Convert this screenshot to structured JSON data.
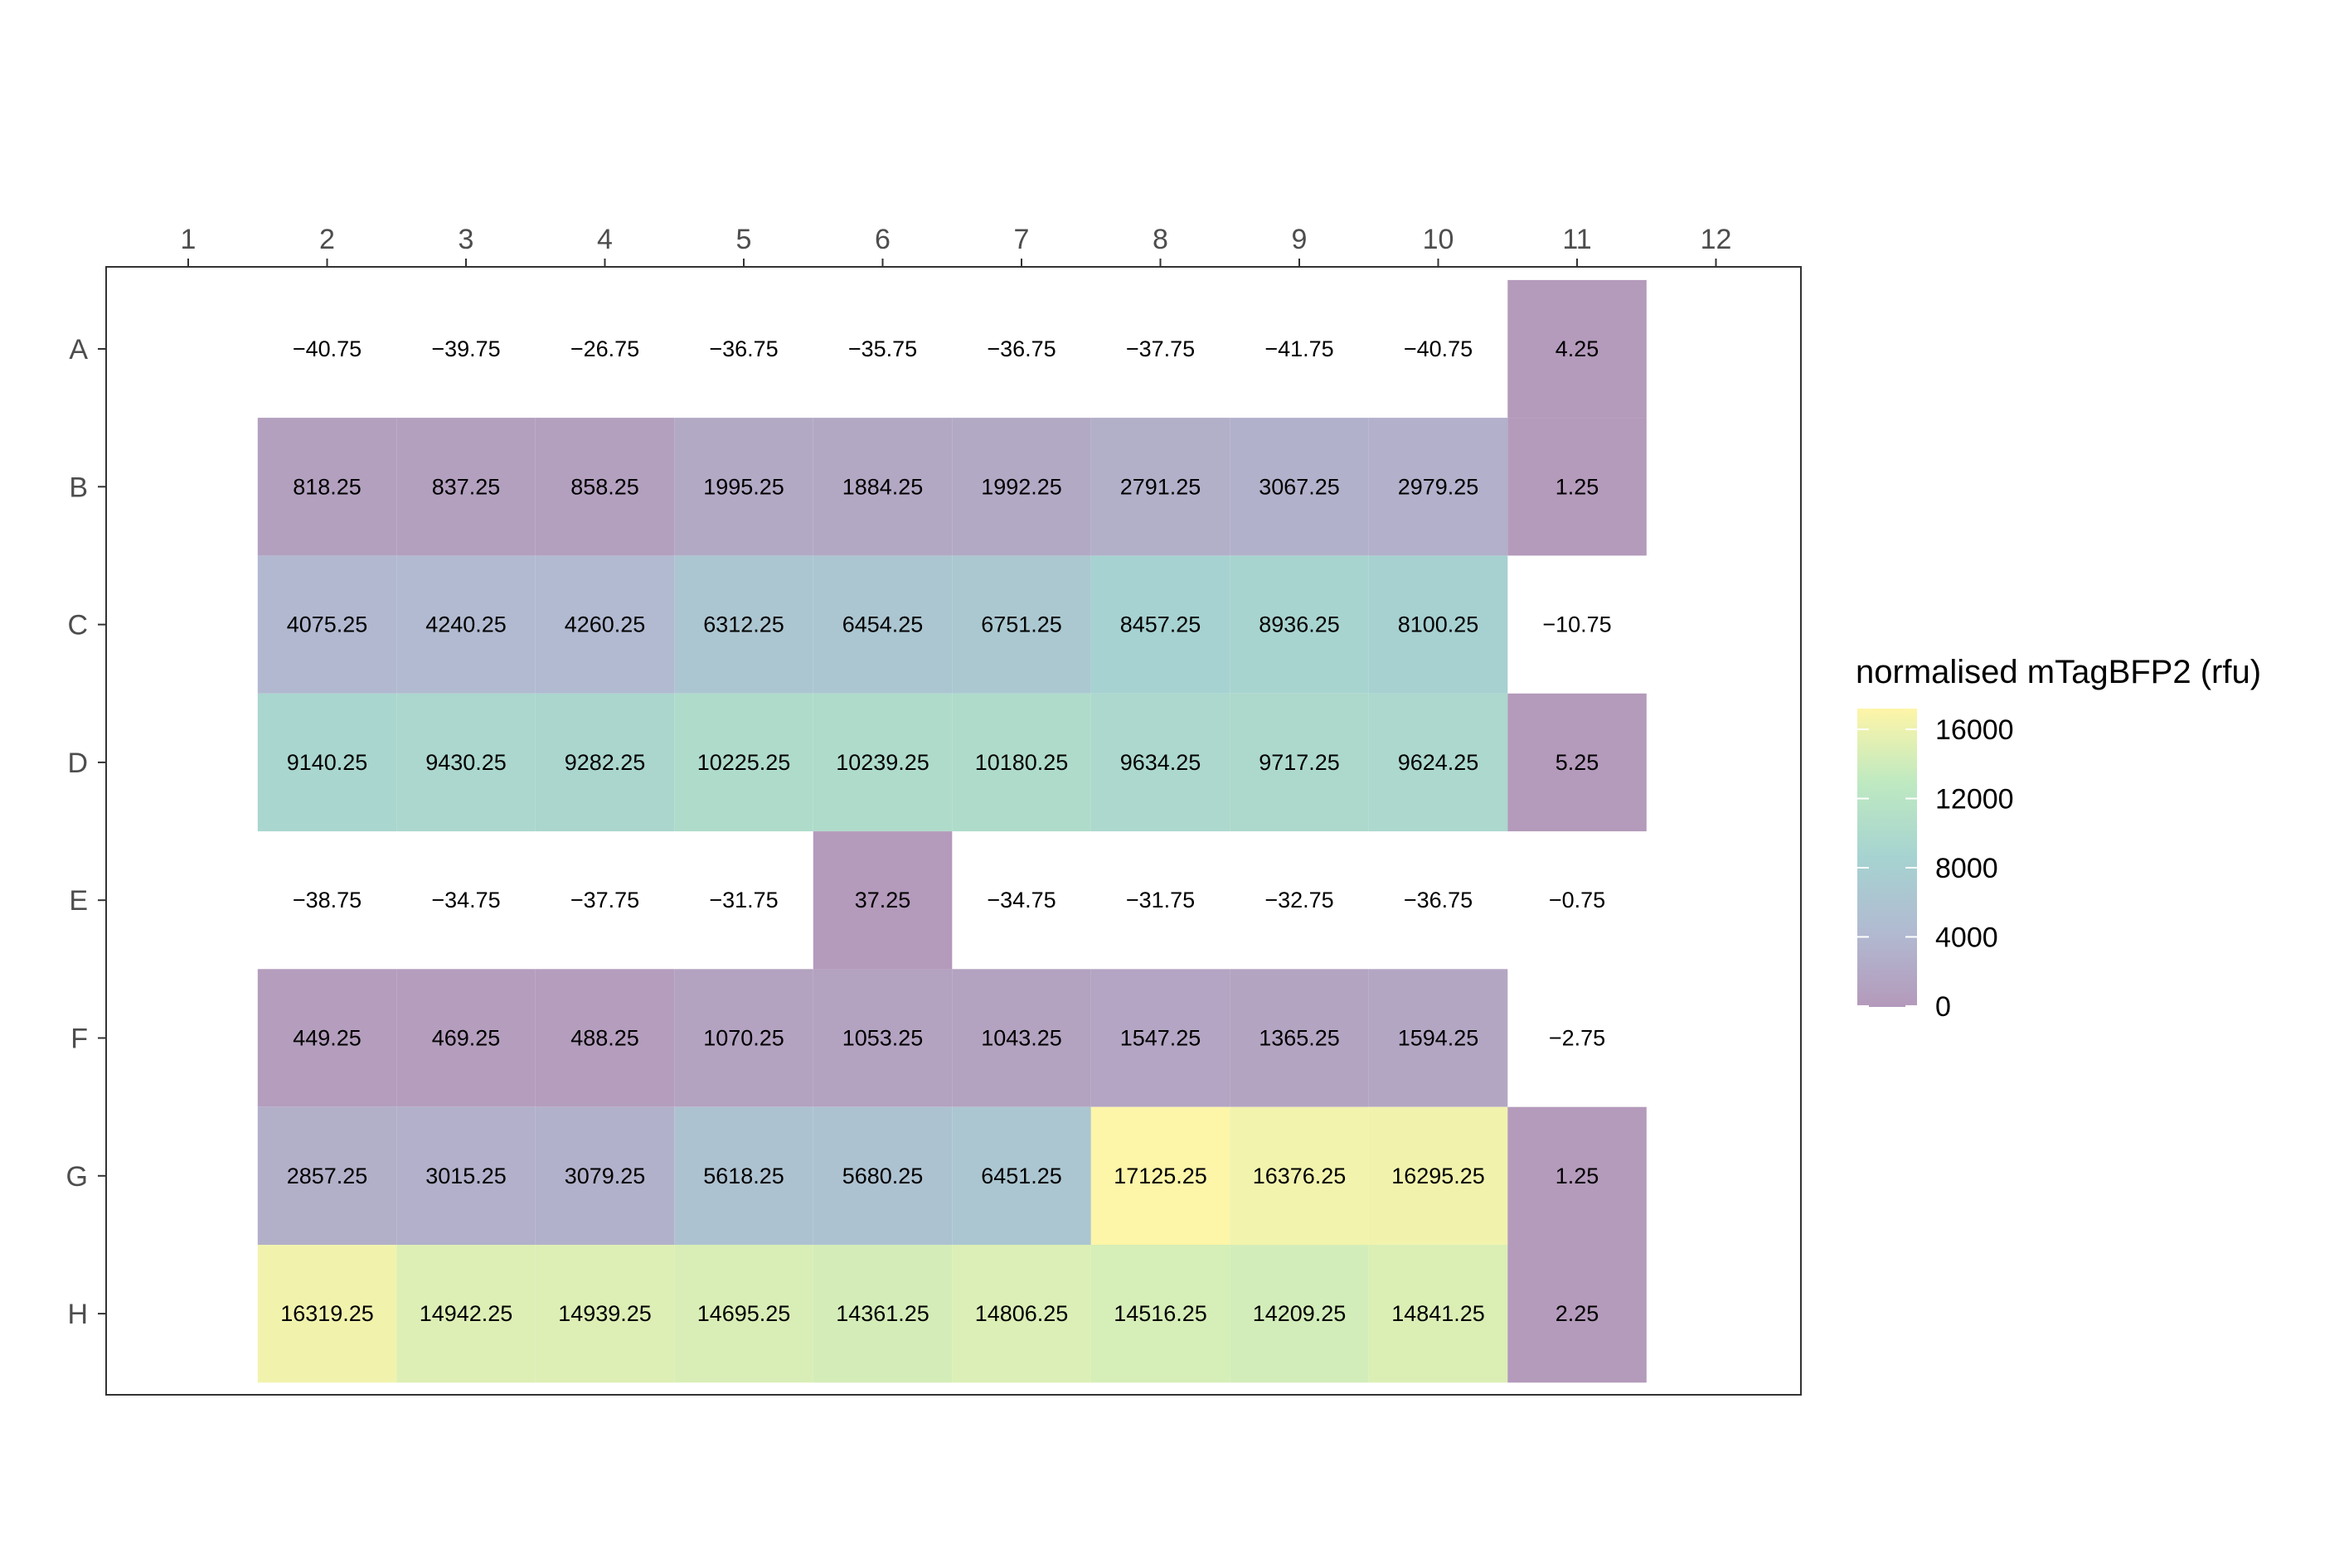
{
  "chart_data": {
    "type": "heatmap",
    "legend": {
      "title": "normalised mTagBFP2 (rfu)",
      "ticks": [
        0,
        4000,
        8000,
        12000,
        16000
      ],
      "tick_labels": [
        "0",
        "4000",
        "8000",
        "12000",
        "16000"
      ],
      "range": [
        -50,
        17200
      ],
      "placement": "right"
    },
    "columns": [
      "1",
      "2",
      "3",
      "4",
      "5",
      "6",
      "7",
      "8",
      "9",
      "10",
      "11",
      "12"
    ],
    "rows": [
      "A",
      "B",
      "C",
      "D",
      "E",
      "F",
      "G",
      "H"
    ],
    "x_axis_position": "top",
    "grid": false,
    "colorscale": {
      "name": "viridis",
      "alpha": 0.4,
      "negative_values": "not filled (shown white)",
      "stops": [
        {
          "pos": 0.0,
          "color": "#440154"
        },
        {
          "pos": 0.25,
          "color": "#3B528B"
        },
        {
          "pos": 0.5,
          "color": "#21908C"
        },
        {
          "pos": 0.75,
          "color": "#5DC863"
        },
        {
          "pos": 1.0,
          "color": "#FDE725"
        }
      ]
    },
    "cells": [
      {
        "row": "A",
        "col": "2",
        "label": "−40.75",
        "value": -40.75
      },
      {
        "row": "A",
        "col": "3",
        "label": "−39.75",
        "value": -39.75
      },
      {
        "row": "A",
        "col": "4",
        "label": "−26.75",
        "value": -26.75
      },
      {
        "row": "A",
        "col": "5",
        "label": "−36.75",
        "value": -36.75
      },
      {
        "row": "A",
        "col": "6",
        "label": "−35.75",
        "value": -35.75
      },
      {
        "row": "A",
        "col": "7",
        "label": "−36.75",
        "value": -36.75
      },
      {
        "row": "A",
        "col": "8",
        "label": "−37.75",
        "value": -37.75
      },
      {
        "row": "A",
        "col": "9",
        "label": "−41.75",
        "value": -41.75
      },
      {
        "row": "A",
        "col": "10",
        "label": "−40.75",
        "value": -40.75
      },
      {
        "row": "A",
        "col": "11",
        "label": "4.25",
        "value": 4.25
      },
      {
        "row": "B",
        "col": "2",
        "label": "818.25",
        "value": 818.25
      },
      {
        "row": "B",
        "col": "3",
        "label": "837.25",
        "value": 837.25
      },
      {
        "row": "B",
        "col": "4",
        "label": "858.25",
        "value": 858.25
      },
      {
        "row": "B",
        "col": "5",
        "label": "1995.25",
        "value": 1995.25
      },
      {
        "row": "B",
        "col": "6",
        "label": "1884.25",
        "value": 1884.25
      },
      {
        "row": "B",
        "col": "7",
        "label": "1992.25",
        "value": 1992.25
      },
      {
        "row": "B",
        "col": "8",
        "label": "2791.25",
        "value": 2791.25
      },
      {
        "row": "B",
        "col": "9",
        "label": "3067.25",
        "value": 3067.25
      },
      {
        "row": "B",
        "col": "10",
        "label": "2979.25",
        "value": 2979.25
      },
      {
        "row": "B",
        "col": "11",
        "label": "1.25",
        "value": 1.25
      },
      {
        "row": "C",
        "col": "2",
        "label": "4075.25",
        "value": 4075.25
      },
      {
        "row": "C",
        "col": "3",
        "label": "4240.25",
        "value": 4240.25
      },
      {
        "row": "C",
        "col": "4",
        "label": "4260.25",
        "value": 4260.25
      },
      {
        "row": "C",
        "col": "5",
        "label": "6312.25",
        "value": 6312.25
      },
      {
        "row": "C",
        "col": "6",
        "label": "6454.25",
        "value": 6454.25
      },
      {
        "row": "C",
        "col": "7",
        "label": "6751.25",
        "value": 6751.25
      },
      {
        "row": "C",
        "col": "8",
        "label": "8457.25",
        "value": 8457.25
      },
      {
        "row": "C",
        "col": "9",
        "label": "8936.25",
        "value": 8936.25
      },
      {
        "row": "C",
        "col": "10",
        "label": "8100.25",
        "value": 8100.25
      },
      {
        "row": "C",
        "col": "11",
        "label": "−10.75",
        "value": -10.75
      },
      {
        "row": "D",
        "col": "2",
        "label": "9140.25",
        "value": 9140.25
      },
      {
        "row": "D",
        "col": "3",
        "label": "9430.25",
        "value": 9430.25
      },
      {
        "row": "D",
        "col": "4",
        "label": "9282.25",
        "value": 9282.25
      },
      {
        "row": "D",
        "col": "5",
        "label": "10225.25",
        "value": 10225.25
      },
      {
        "row": "D",
        "col": "6",
        "label": "10239.25",
        "value": 10239.25
      },
      {
        "row": "D",
        "col": "7",
        "label": "10180.25",
        "value": 10180.25
      },
      {
        "row": "D",
        "col": "8",
        "label": "9634.25",
        "value": 9634.25
      },
      {
        "row": "D",
        "col": "9",
        "label": "9717.25",
        "value": 9717.25
      },
      {
        "row": "D",
        "col": "10",
        "label": "9624.25",
        "value": 9624.25
      },
      {
        "row": "D",
        "col": "11",
        "label": "5.25",
        "value": 5.25
      },
      {
        "row": "E",
        "col": "2",
        "label": "−38.75",
        "value": -38.75
      },
      {
        "row": "E",
        "col": "3",
        "label": "−34.75",
        "value": -34.75
      },
      {
        "row": "E",
        "col": "4",
        "label": "−37.75",
        "value": -37.75
      },
      {
        "row": "E",
        "col": "5",
        "label": "−31.75",
        "value": -31.75
      },
      {
        "row": "E",
        "col": "6",
        "label": "37.25",
        "value": 37.25
      },
      {
        "row": "E",
        "col": "7",
        "label": "−34.75",
        "value": -34.75
      },
      {
        "row": "E",
        "col": "8",
        "label": "−31.75",
        "value": -31.75
      },
      {
        "row": "E",
        "col": "9",
        "label": "−32.75",
        "value": -32.75
      },
      {
        "row": "E",
        "col": "10",
        "label": "−36.75",
        "value": -36.75
      },
      {
        "row": "E",
        "col": "11",
        "label": "−0.75",
        "value": -0.75
      },
      {
        "row": "F",
        "col": "2",
        "label": "449.25",
        "value": 449.25
      },
      {
        "row": "F",
        "col": "3",
        "label": "469.25",
        "value": 469.25
      },
      {
        "row": "F",
        "col": "4",
        "label": "488.25",
        "value": 488.25
      },
      {
        "row": "F",
        "col": "5",
        "label": "1070.25",
        "value": 1070.25
      },
      {
        "row": "F",
        "col": "6",
        "label": "1053.25",
        "value": 1053.25
      },
      {
        "row": "F",
        "col": "7",
        "label": "1043.25",
        "value": 1043.25
      },
      {
        "row": "F",
        "col": "8",
        "label": "1547.25",
        "value": 1547.25
      },
      {
        "row": "F",
        "col": "9",
        "label": "1365.25",
        "value": 1365.25
      },
      {
        "row": "F",
        "col": "10",
        "label": "1594.25",
        "value": 1594.25
      },
      {
        "row": "F",
        "col": "11",
        "label": "−2.75",
        "value": -2.75
      },
      {
        "row": "G",
        "col": "2",
        "label": "2857.25",
        "value": 2857.25
      },
      {
        "row": "G",
        "col": "3",
        "label": "3015.25",
        "value": 3015.25
      },
      {
        "row": "G",
        "col": "4",
        "label": "3079.25",
        "value": 3079.25
      },
      {
        "row": "G",
        "col": "5",
        "label": "5618.25",
        "value": 5618.25
      },
      {
        "row": "G",
        "col": "6",
        "label": "5680.25",
        "value": 5680.25
      },
      {
        "row": "G",
        "col": "7",
        "label": "6451.25",
        "value": 6451.25
      },
      {
        "row": "G",
        "col": "8",
        "label": "17125.25",
        "value": 17125.25
      },
      {
        "row": "G",
        "col": "9",
        "label": "16376.25",
        "value": 16376.25
      },
      {
        "row": "G",
        "col": "10",
        "label": "16295.25",
        "value": 16295.25
      },
      {
        "row": "G",
        "col": "11",
        "label": "1.25",
        "value": 1.25
      },
      {
        "row": "H",
        "col": "2",
        "label": "16319.25",
        "value": 16319.25
      },
      {
        "row": "H",
        "col": "3",
        "label": "14942.25",
        "value": 14942.25
      },
      {
        "row": "H",
        "col": "4",
        "label": "14939.25",
        "value": 14939.25
      },
      {
        "row": "H",
        "col": "5",
        "label": "14695.25",
        "value": 14695.25
      },
      {
        "row": "H",
        "col": "6",
        "label": "14361.25",
        "value": 14361.25
      },
      {
        "row": "H",
        "col": "7",
        "label": "14806.25",
        "value": 14806.25
      },
      {
        "row": "H",
        "col": "8",
        "label": "14516.25",
        "value": 14516.25
      },
      {
        "row": "H",
        "col": "9",
        "label": "14209.25",
        "value": 14209.25
      },
      {
        "row": "H",
        "col": "10",
        "label": "14841.25",
        "value": 14841.25
      },
      {
        "row": "H",
        "col": "11",
        "label": "2.25",
        "value": 2.25
      }
    ]
  }
}
